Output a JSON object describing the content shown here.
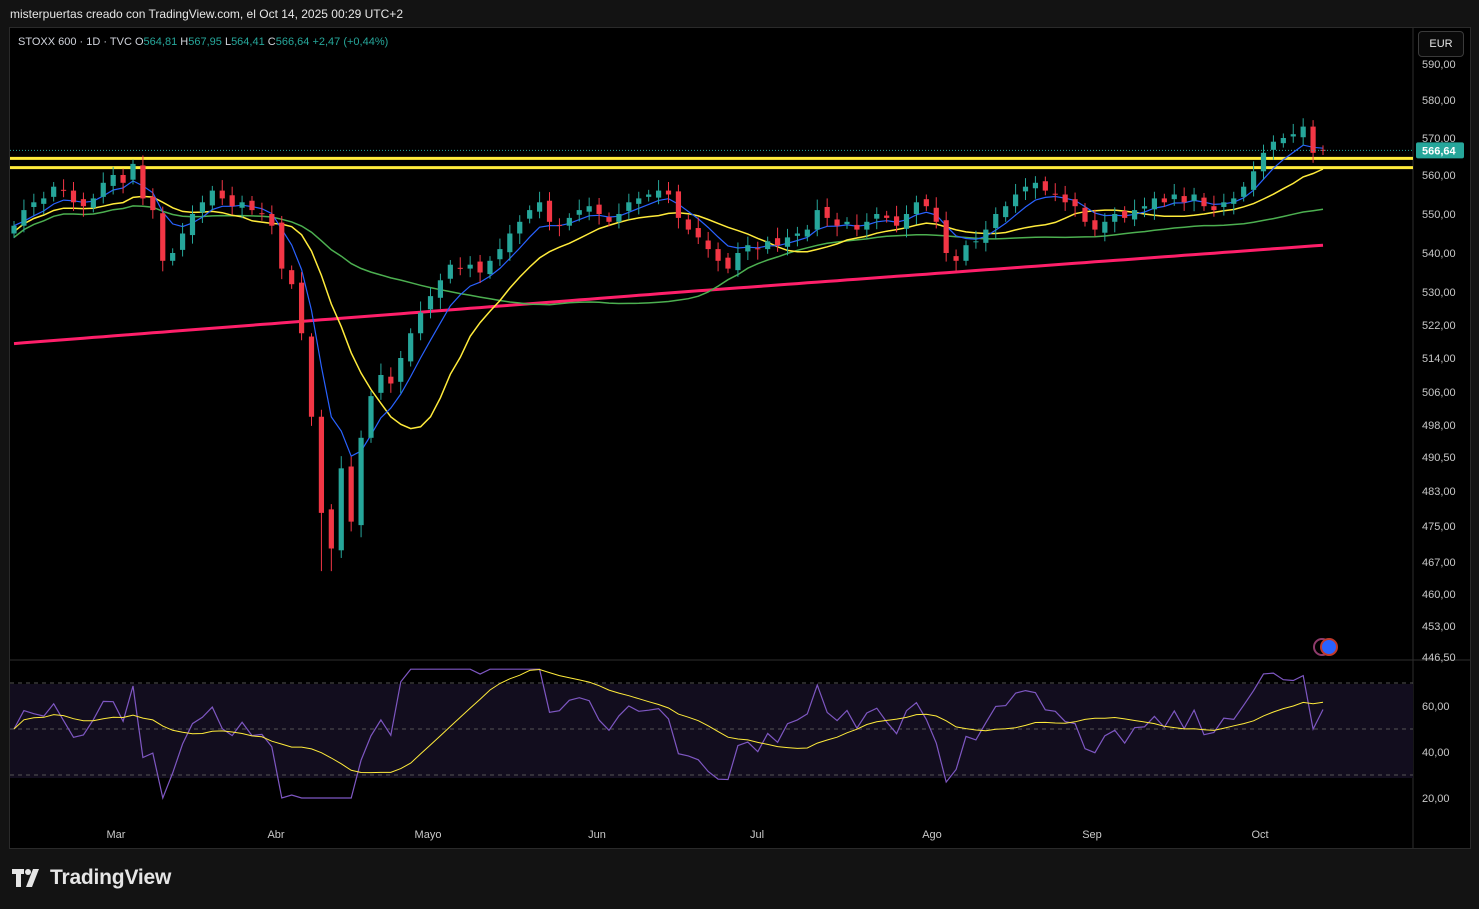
{
  "caption": "misterpuertas creado con TradingView.com, el Oct 14, 2025 00:29 UTC+2",
  "legend": {
    "symbol": "STOXX 600 · 1D · TVC",
    "o_label": "O",
    "o": "564,81",
    "h_label": "H",
    "h": "567,95",
    "l_label": "L",
    "l": "564,41",
    "c_label": "C",
    "c": "566,64",
    "change": "+2,47 (+0,44%)"
  },
  "currency_button": "EUR",
  "last_price_tag": "566,64",
  "footer_brand": "TradingView",
  "colors": {
    "up": "#26a69a",
    "down": "#f23645",
    "ema_blue": "#2962ff",
    "ma_yellow": "#ffeb3b",
    "ma_green": "#4caf50",
    "ma_pink": "#ff1f6a",
    "rsi": "#7e57c2",
    "hline": "#ffeb3b"
  },
  "chart_data": {
    "type": "candlestick",
    "price_axis_ticks": [
      "590,00",
      "580,00",
      "570,00",
      "560,00",
      "550,00",
      "540,00",
      "530,00",
      "522,00",
      "514,00",
      "506,00",
      "498,00",
      "490,50",
      "483,00",
      "475,00",
      "467,00",
      "460,00",
      "453,00",
      "446,50"
    ],
    "rsi_axis_ticks": [
      "60,00",
      "40,00",
      "20,00"
    ],
    "x_labels": [
      "Mar",
      "Abr",
      "Mayo",
      "Jun",
      "Jul",
      "Ago",
      "Sep",
      "Oct"
    ],
    "horizontal_levels": [
      564.5,
      562.0
    ],
    "rsi_bands": [
      70,
      50,
      30
    ],
    "closes": [
      547,
      551,
      553,
      554,
      557,
      556,
      553,
      552,
      554,
      558,
      560,
      558,
      563,
      554,
      551,
      538,
      540,
      545,
      550,
      553,
      556,
      554,
      552,
      553,
      551,
      550,
      547,
      536,
      532,
      520,
      500,
      478,
      470,
      488,
      476,
      495,
      505,
      510,
      508,
      514,
      520,
      525,
      529,
      533,
      537,
      536,
      537,
      535,
      538,
      541,
      545,
      548,
      551,
      553,
      548,
      547,
      549,
      551,
      552,
      550,
      548,
      550,
      553,
      554,
      555,
      556,
      555,
      549,
      546,
      544,
      541,
      538,
      536,
      540,
      542,
      541,
      543,
      542,
      544,
      545,
      546,
      551,
      549,
      547,
      548,
      546,
      548,
      550,
      549,
      547,
      550,
      553,
      552,
      548,
      540,
      538,
      542,
      543,
      546,
      550,
      552,
      555,
      557,
      558,
      556,
      555,
      553,
      552,
      548,
      546,
      548,
      550,
      549,
      551,
      552,
      554,
      553,
      555,
      553,
      555,
      552,
      551,
      553,
      554,
      557,
      561,
      566,
      569,
      570,
      571,
      573,
      566,
      566.6
    ]
  }
}
